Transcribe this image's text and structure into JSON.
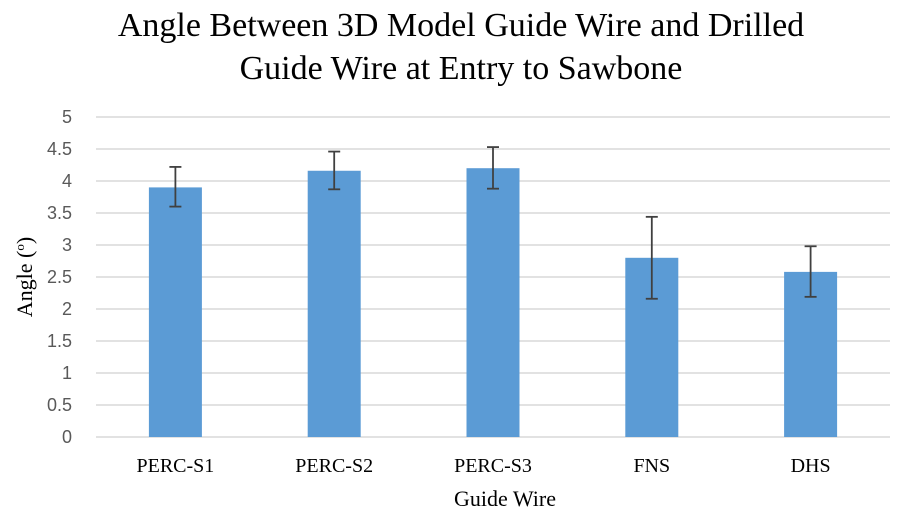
{
  "chart_data": {
    "type": "bar",
    "title_lines": [
      "Angle Between 3D Model Guide Wire and Drilled",
      "Guide Wire at Entry to Sawbone"
    ],
    "xlabel": "Guide Wire",
    "ylabel_main": "Angle (",
    "ylabel_sup": "o",
    "ylabel_close": ")",
    "categories": [
      "PERC-S1",
      "PERC-S2",
      "PERC-S3",
      "FNS",
      "DHS"
    ],
    "values": [
      3.9,
      4.16,
      4.2,
      2.8,
      2.58
    ],
    "error_low": [
      3.6,
      3.87,
      3.88,
      2.16,
      2.19
    ],
    "error_high": [
      4.22,
      4.46,
      4.53,
      3.44,
      2.98
    ],
    "ylim": [
      0,
      5
    ],
    "yticks": [
      "0",
      "0.5",
      "1",
      "1.5",
      "2",
      "2.5",
      "3",
      "3.5",
      "4",
      "4.5",
      "5"
    ],
    "grid": true,
    "legend": "none",
    "bar_color": "#5b9bd5"
  }
}
